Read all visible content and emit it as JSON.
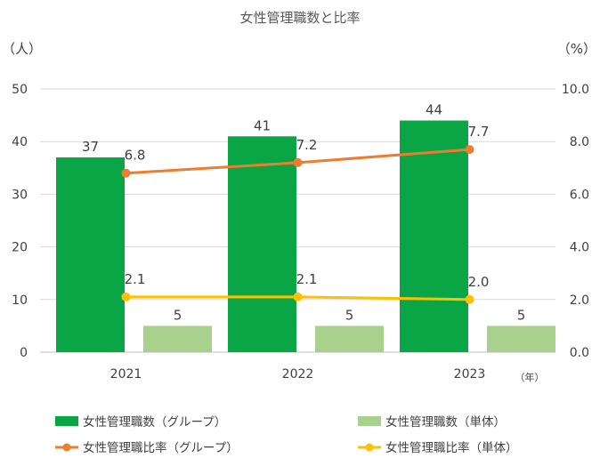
{
  "chart_data": {
    "type": "bar",
    "title": "女性管理職数と比率",
    "categories": [
      "2021",
      "2022",
      "2023"
    ],
    "xlabel": "（年）",
    "ylabel_left": "（人）",
    "ylabel_right": "（%）",
    "ylim_left": [
      0,
      50
    ],
    "ylim_right": [
      0,
      10
    ],
    "yticks_left": [
      "0",
      "10",
      "20",
      "30",
      "40",
      "50"
    ],
    "yticks_right": [
      "0.0",
      "2.0",
      "4.0",
      "6.0",
      "8.0",
      "10.0"
    ],
    "grid": true,
    "legend_position": "bottom",
    "series": [
      {
        "name": "女性管理職数（グループ）",
        "kind": "bar",
        "axis": "left",
        "color": "#0aa645",
        "values": [
          37,
          41,
          44
        ],
        "labels": [
          "37",
          "41",
          "44"
        ]
      },
      {
        "name": "女性管理職数（単体）",
        "kind": "bar",
        "axis": "left",
        "color": "#a9d18e",
        "values": [
          5,
          5,
          5
        ],
        "labels": [
          "5",
          "5",
          "5"
        ]
      },
      {
        "name": "女性管理職比率（グループ）",
        "kind": "line",
        "axis": "right",
        "color": "#ed7d31",
        "values": [
          6.8,
          7.2,
          7.7
        ],
        "labels": [
          "6.8",
          "7.2",
          "7.7"
        ]
      },
      {
        "name": "女性管理職比率（単体）",
        "kind": "line",
        "axis": "right",
        "color": "#ffc000",
        "values": [
          2.1,
          2.1,
          2.0
        ],
        "labels": [
          "2.1",
          "2.1",
          "2.0"
        ]
      }
    ]
  }
}
